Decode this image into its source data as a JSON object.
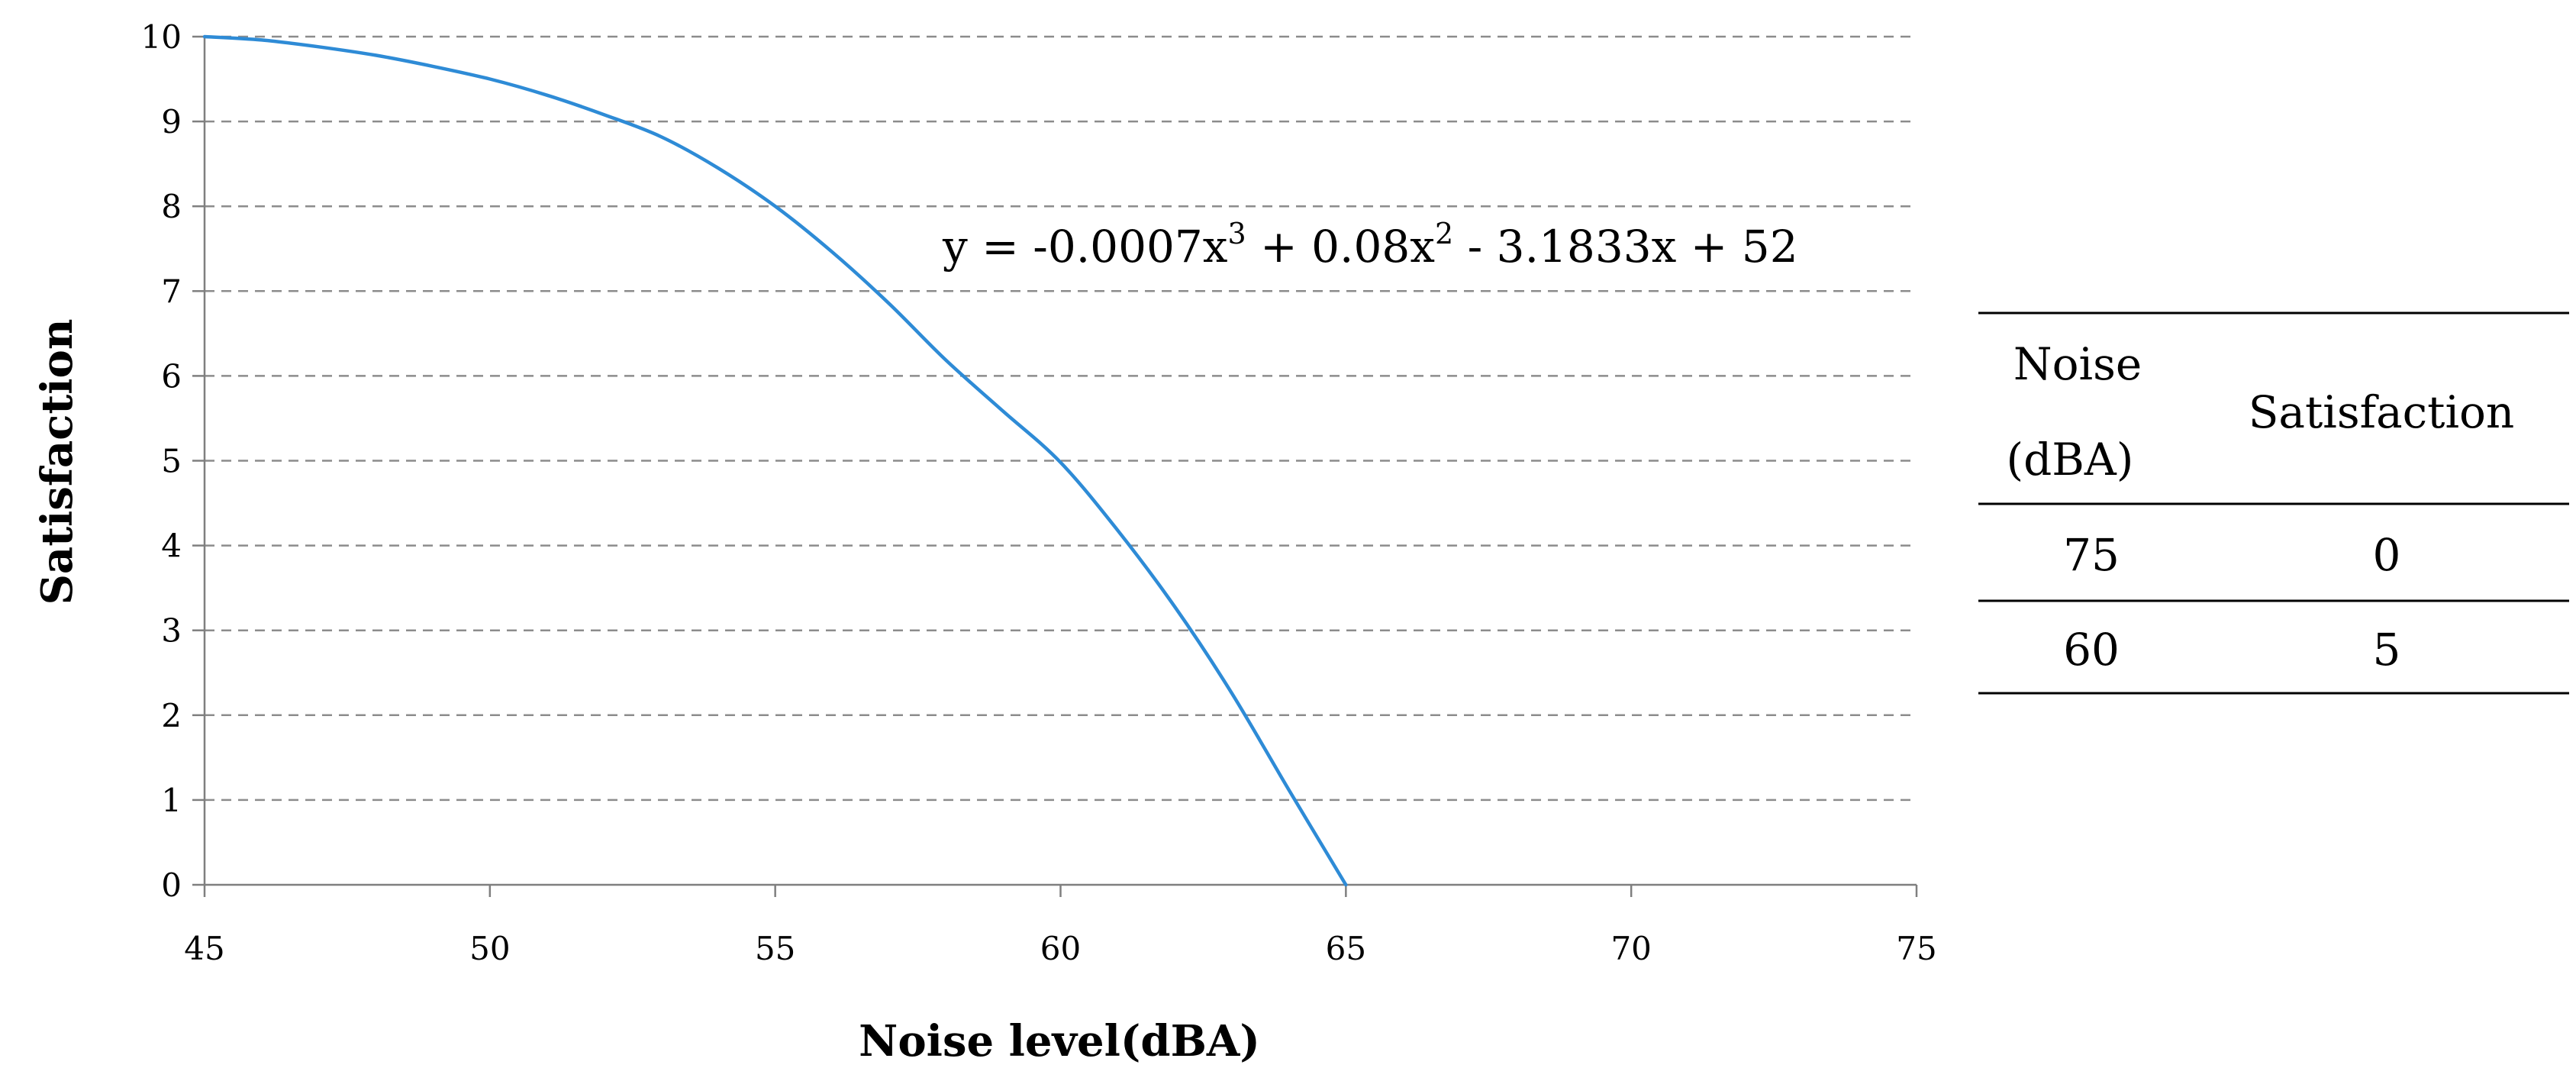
{
  "chart_data": {
    "type": "line",
    "xlabel": "Noise level(dBA)",
    "ylabel": "Satisfaction",
    "xlim": [
      45,
      75
    ],
    "ylim": [
      0,
      10
    ],
    "x_ticks": [
      "45",
      "50",
      "55",
      "60",
      "65",
      "70",
      "75"
    ],
    "y_ticks": [
      "0",
      "1",
      "2",
      "3",
      "4",
      "5",
      "6",
      "7",
      "8",
      "9",
      "10"
    ],
    "grid": "horizontal dashed",
    "line_color": "#2E8BD6",
    "series": [
      {
        "x": [
          45,
          46,
          47,
          48,
          49,
          50,
          51,
          52,
          53,
          54,
          55,
          56,
          57,
          58,
          59,
          60,
          61,
          62,
          63,
          64,
          65
        ],
        "y": [
          10,
          9.96,
          9.88,
          9.78,
          9.65,
          9.5,
          9.31,
          9.08,
          8.82,
          8.45,
          8.0,
          7.46,
          6.85,
          6.18,
          5.58,
          4.98,
          4.18,
          3.28,
          2.26,
          1.12,
          0
        ]
      }
    ],
    "equation": {
      "parts": [
        "y = -0.0007x",
        "3",
        " + 0.08x",
        "2",
        " - 3.1833x + 52"
      ]
    },
    "table": {
      "headers": [
        [
          "Noise",
          "(dBA)"
        ],
        [
          "Satisfaction"
        ]
      ],
      "rows": [
        [
          "75",
          "0"
        ],
        [
          "60",
          "5"
        ]
      ]
    }
  }
}
